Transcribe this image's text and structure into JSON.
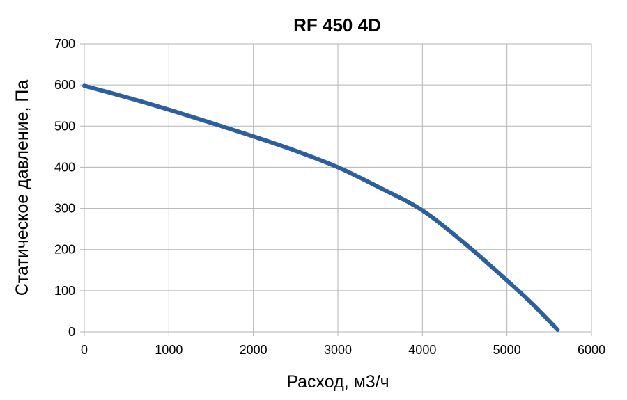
{
  "chart_data": {
    "type": "line",
    "title": "RF 450 4D",
    "xlabel": "Расход, м3/ч",
    "ylabel": "Статическое давление, Па",
    "xlim": [
      0,
      6000
    ],
    "ylim": [
      0,
      700
    ],
    "x_ticks": [
      0,
      1000,
      2000,
      3000,
      4000,
      5000,
      6000
    ],
    "y_ticks": [
      0,
      100,
      200,
      300,
      400,
      500,
      600,
      700
    ],
    "x_tick_labels": [
      "0",
      "1000",
      "2000",
      "3000",
      "4000",
      "5000",
      "6000"
    ],
    "y_tick_labels": [
      "0",
      "100",
      "200",
      "300",
      "400",
      "500",
      "600",
      "700"
    ],
    "grid": true,
    "legend": "none",
    "series": [
      {
        "color": "#2c5f9e",
        "x": [
          0,
          500,
          1000,
          1500,
          2000,
          2500,
          3000,
          3500,
          4000,
          4500,
          5000,
          5300,
          5600
        ],
        "y": [
          598,
          570,
          540,
          508,
          475,
          440,
          400,
          350,
          295,
          215,
          125,
          68,
          5
        ]
      }
    ]
  }
}
